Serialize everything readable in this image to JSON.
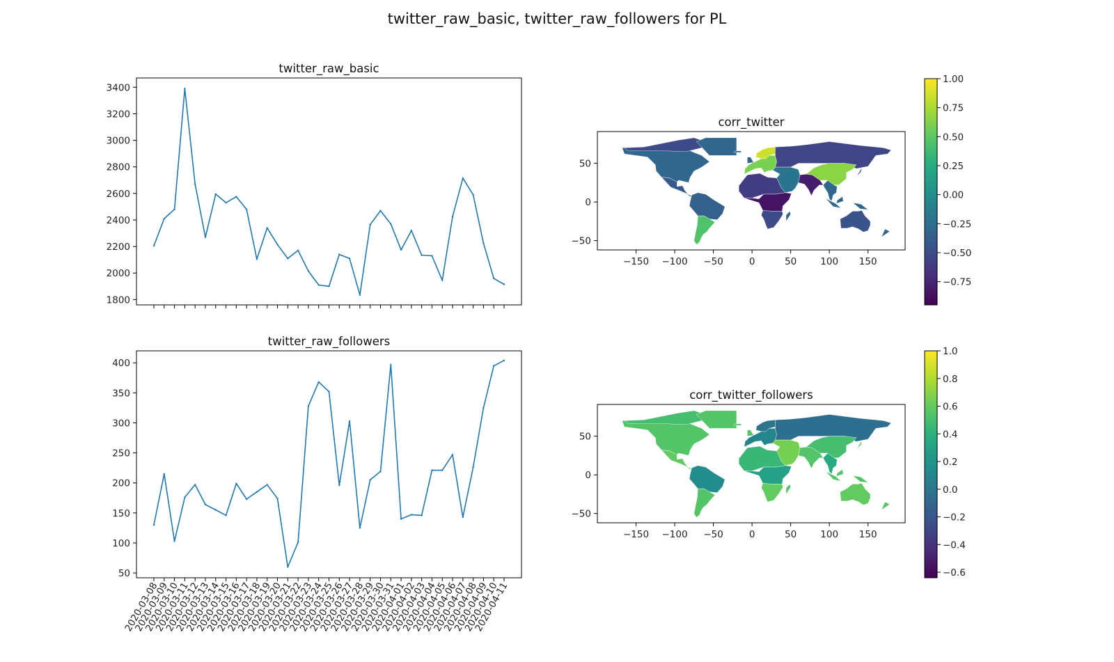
{
  "figure": {
    "suptitle": "twitter_raw_basic, twitter_raw_followers for PL"
  },
  "chart_data": [
    {
      "type": "line",
      "title": "twitter_raw_basic",
      "xlabel": "",
      "ylabel": "",
      "categories": [
        "2020-03-08",
        "2020-03-09",
        "2020-03-10",
        "2020-03-11",
        "2020-03-12",
        "2020-03-13",
        "2020-03-14",
        "2020-03-15",
        "2020-03-16",
        "2020-03-17",
        "2020-03-18",
        "2020-03-19",
        "2020-03-20",
        "2020-03-21",
        "2020-03-22",
        "2020-03-23",
        "2020-03-24",
        "2020-03-25",
        "2020-03-26",
        "2020-03-27",
        "2020-03-28",
        "2020-03-29",
        "2020-03-30",
        "2020-03-31",
        "2020-04-01",
        "2020-04-02",
        "2020-04-03",
        "2020-04-04",
        "2020-04-05",
        "2020-04-06",
        "2020-04-07",
        "2020-04-08",
        "2020-04-09",
        "2020-04-10",
        "2020-04-11"
      ],
      "series": [
        {
          "values": [
            2205,
            2410,
            2480,
            3390,
            2670,
            2270,
            2595,
            2530,
            2575,
            2480,
            2105,
            2340,
            2215,
            2110,
            2170,
            2015,
            1910,
            1900,
            2140,
            2110,
            1835,
            2365,
            2470,
            2370,
            2175,
            2320,
            2135,
            2130,
            1945,
            2425,
            2715,
            2590,
            2225,
            1960,
            1915
          ],
          "color": "#1f77b4"
        }
      ],
      "yticks": [
        1800,
        2000,
        2200,
        2400,
        2600,
        2800,
        3000,
        3200,
        3400
      ],
      "ylim": [
        1760,
        3470
      ],
      "grid": false
    },
    {
      "type": "line",
      "title": "twitter_raw_followers",
      "xlabel": "",
      "ylabel": "",
      "categories": [
        "2020-03-08",
        "2020-03-09",
        "2020-03-10",
        "2020-03-11",
        "2020-03-12",
        "2020-03-13",
        "2020-03-14",
        "2020-03-15",
        "2020-03-16",
        "2020-03-17",
        "2020-03-18",
        "2020-03-19",
        "2020-03-20",
        "2020-03-21",
        "2020-03-22",
        "2020-03-23",
        "2020-03-24",
        "2020-03-25",
        "2020-03-26",
        "2020-03-27",
        "2020-03-28",
        "2020-03-29",
        "2020-03-30",
        "2020-03-31",
        "2020-04-01",
        "2020-04-02",
        "2020-04-03",
        "2020-04-04",
        "2020-04-05",
        "2020-04-06",
        "2020-04-07",
        "2020-04-08",
        "2020-04-09",
        "2020-04-10",
        "2020-04-11"
      ],
      "series": [
        {
          "values": [
            130,
            215,
            103,
            176,
            197,
            164,
            155,
            146,
            199,
            173,
            185,
            197,
            174,
            60,
            101,
            328,
            368,
            352,
            196,
            303,
            125,
            205,
            219,
            397,
            140,
            147,
            146,
            221,
            221,
            247,
            143,
            226,
            325,
            395,
            404
          ],
          "color": "#1f77b4"
        }
      ],
      "yticks": [
        50,
        100,
        150,
        200,
        250,
        300,
        350,
        400
      ],
      "ylim": [
        42,
        420
      ],
      "xtick_rotation": 60,
      "grid": false
    },
    {
      "type": "heatmap",
      "subtype": "choropleth-map",
      "title": "corr_twitter",
      "xticks": [
        -150,
        -100,
        -50,
        0,
        50,
        100,
        150
      ],
      "yticks": [
        -50,
        0,
        50
      ],
      "xlim": [
        -200,
        198
      ],
      "ylim": [
        -62,
        91
      ],
      "colormap": "viridis",
      "colorbar": {
        "min": -0.95,
        "max": 1.0,
        "ticks": [
          "1.00",
          "0.75",
          "0.50",
          "0.25",
          "0.00",
          "−0.25",
          "−0.50",
          "−0.75"
        ],
        "tick_values": [
          1.0,
          0.75,
          0.5,
          0.25,
          0.0,
          -0.25,
          -0.5,
          -0.75
        ]
      },
      "region_values": [
        {
          "region": "North America",
          "value": -0.3
        },
        {
          "region": "Canada Arctic",
          "value": -0.5
        },
        {
          "region": "Central America",
          "value": -0.4
        },
        {
          "region": "South America North",
          "value": -0.35
        },
        {
          "region": "South America South",
          "value": 0.45
        },
        {
          "region": "Europe West",
          "value": 0.6
        },
        {
          "region": "Scandinavia",
          "value": 0.85
        },
        {
          "region": "Russia",
          "value": -0.55
        },
        {
          "region": "Africa North",
          "value": -0.6
        },
        {
          "region": "Africa Central",
          "value": -0.85
        },
        {
          "region": "Africa South",
          "value": -0.5
        },
        {
          "region": "Middle East",
          "value": -0.2
        },
        {
          "region": "India",
          "value": -0.8
        },
        {
          "region": "China",
          "value": 0.65
        },
        {
          "region": "Southeast Asia",
          "value": -0.3
        },
        {
          "region": "Australia",
          "value": -0.45
        }
      ]
    },
    {
      "type": "heatmap",
      "subtype": "choropleth-map",
      "title": "corr_twitter_followers",
      "xticks": [
        -150,
        -100,
        -50,
        0,
        50,
        100,
        150
      ],
      "yticks": [
        -50,
        0,
        50
      ],
      "xlim": [
        -200,
        198
      ],
      "ylim": [
        -62,
        91
      ],
      "colormap": "viridis",
      "colorbar": {
        "min": -0.64,
        "max": 1.0,
        "ticks": [
          "1.0",
          "0.8",
          "0.6",
          "0.4",
          "0.2",
          "0.0",
          "−0.2",
          "−0.4",
          "−0.6"
        ],
        "tick_values": [
          1.0,
          0.8,
          0.6,
          0.4,
          0.2,
          0.0,
          -0.2,
          -0.4,
          -0.6
        ]
      },
      "region_values": [
        {
          "region": "North America",
          "value": 0.55
        },
        {
          "region": "Canada Arctic",
          "value": 0.5
        },
        {
          "region": "Central America",
          "value": 0.6
        },
        {
          "region": "South America North",
          "value": 0.15
        },
        {
          "region": "South America South",
          "value": 0.55
        },
        {
          "region": "Europe West",
          "value": 0.1
        },
        {
          "region": "Scandinavia",
          "value": 0.0
        },
        {
          "region": "Russia",
          "value": -0.05
        },
        {
          "region": "Africa North",
          "value": 0.45
        },
        {
          "region": "Africa Central",
          "value": 0.3
        },
        {
          "region": "Africa South",
          "value": 0.6
        },
        {
          "region": "Middle East",
          "value": 0.65
        },
        {
          "region": "India",
          "value": 0.55
        },
        {
          "region": "China",
          "value": 0.5
        },
        {
          "region": "Southeast Asia",
          "value": 0.35
        },
        {
          "region": "Australia",
          "value": 0.6
        }
      ]
    }
  ]
}
